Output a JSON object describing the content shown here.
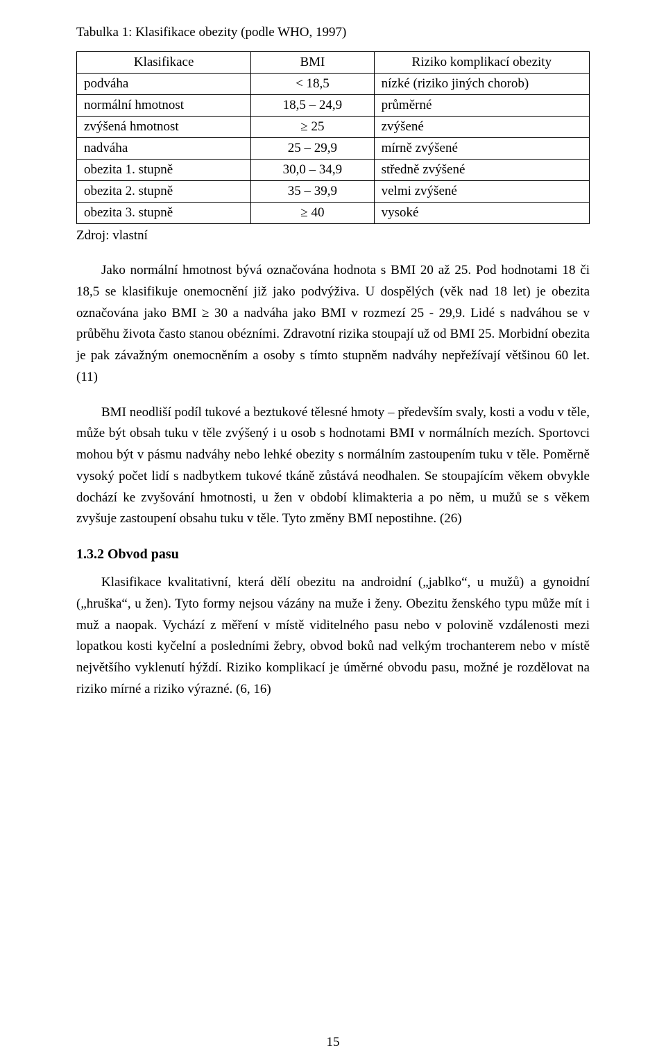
{
  "table_title": "Tabulka 1: Klasifikace obezity (podle WHO, 1997)",
  "table": {
    "headers": {
      "c0": "Klasifikace",
      "c1": "BMI",
      "c2": "Riziko komplikací obezity"
    },
    "rows": [
      {
        "c0": "podváha",
        "c1": "< 18,5",
        "c2": "nízké (riziko jiných chorob)"
      },
      {
        "c0": "normální hmotnost",
        "c1": "18,5 – 24,9",
        "c2": "průměrné"
      },
      {
        "c0": "zvýšená hmotnost",
        "c1": "≥ 25",
        "c2": "zvýšené"
      },
      {
        "c0": "nadváha",
        "c1": "25 – 29,9",
        "c2": "mírně zvýšené"
      },
      {
        "c0": "obezita 1. stupně",
        "c1": "30,0 – 34,9",
        "c2": "středně zvýšené"
      },
      {
        "c0": "obezita 2. stupně",
        "c1": "35 – 39,9",
        "c2": "velmi zvýšené"
      },
      {
        "c0": "obezita 3. stupně",
        "c1": "≥ 40",
        "c2": "vysoké"
      }
    ]
  },
  "source_line": "Zdroj: vlastní",
  "paragraphs": {
    "p1": "Jako normální hmotnost bývá označována hodnota s BMI 20 až 25. Pod hodnotami 18 či 18,5 se klasifikuje onemocnění již jako podvýživa. U dospělých (věk nad 18 let) je obezita označována jako BMI ≥ 30 a nadváha jako BMI v rozmezí 25 - 29,9. Lidé s nadváhou se v průběhu života často stanou obézními. Zdravotní rizika stoupají už od BMI 25. Morbidní obezita je pak závažným onemocněním a osoby s tímto stupněm nadváhy nepřežívají většinou 60 let. (11)",
    "p2": "BMI neodliší podíl tukové a beztukové tělesné hmoty – především svaly, kosti a vodu v těle, může být obsah tuku v těle zvýšený i u osob s hodnotami BMI v normálních mezích. Sportovci mohou být v pásmu nadváhy nebo lehké obezity s normálním zastoupením tuku v těle. Poměrně vysoký počet lidí s nadbytkem tukové tkáně zůstává neodhalen. Se stoupajícím věkem obvykle dochází ke zvyšování hmotnosti, u žen v období klimakteria a po něm, u mužů se s věkem zvyšuje zastoupení obsahu tuku v těle. Tyto změny BMI nepostihne. (26)",
    "p3": "Klasifikace kvalitativní, která dělí obezitu na  androidní („jablko“, u mužů) a gynoidní („hruška“, u žen). Tyto formy nejsou vázány na muže i ženy. Obezitu ženského typu může mít i muž a naopak. Vychází z měření v místě viditelného pasu nebo v polovině vzdálenosti mezi lopatkou kosti kyčelní a posledními žebry, obvod boků nad velkým trochanterem nebo v místě největšího vyklenutí hýždí. Riziko komplikací je úměrné obvodu pasu, možné je rozdělovat na riziko mírné a riziko výrazné. (6, 16)"
  },
  "subheading": "1.3.2 Obvod pasu",
  "page_number": "15"
}
